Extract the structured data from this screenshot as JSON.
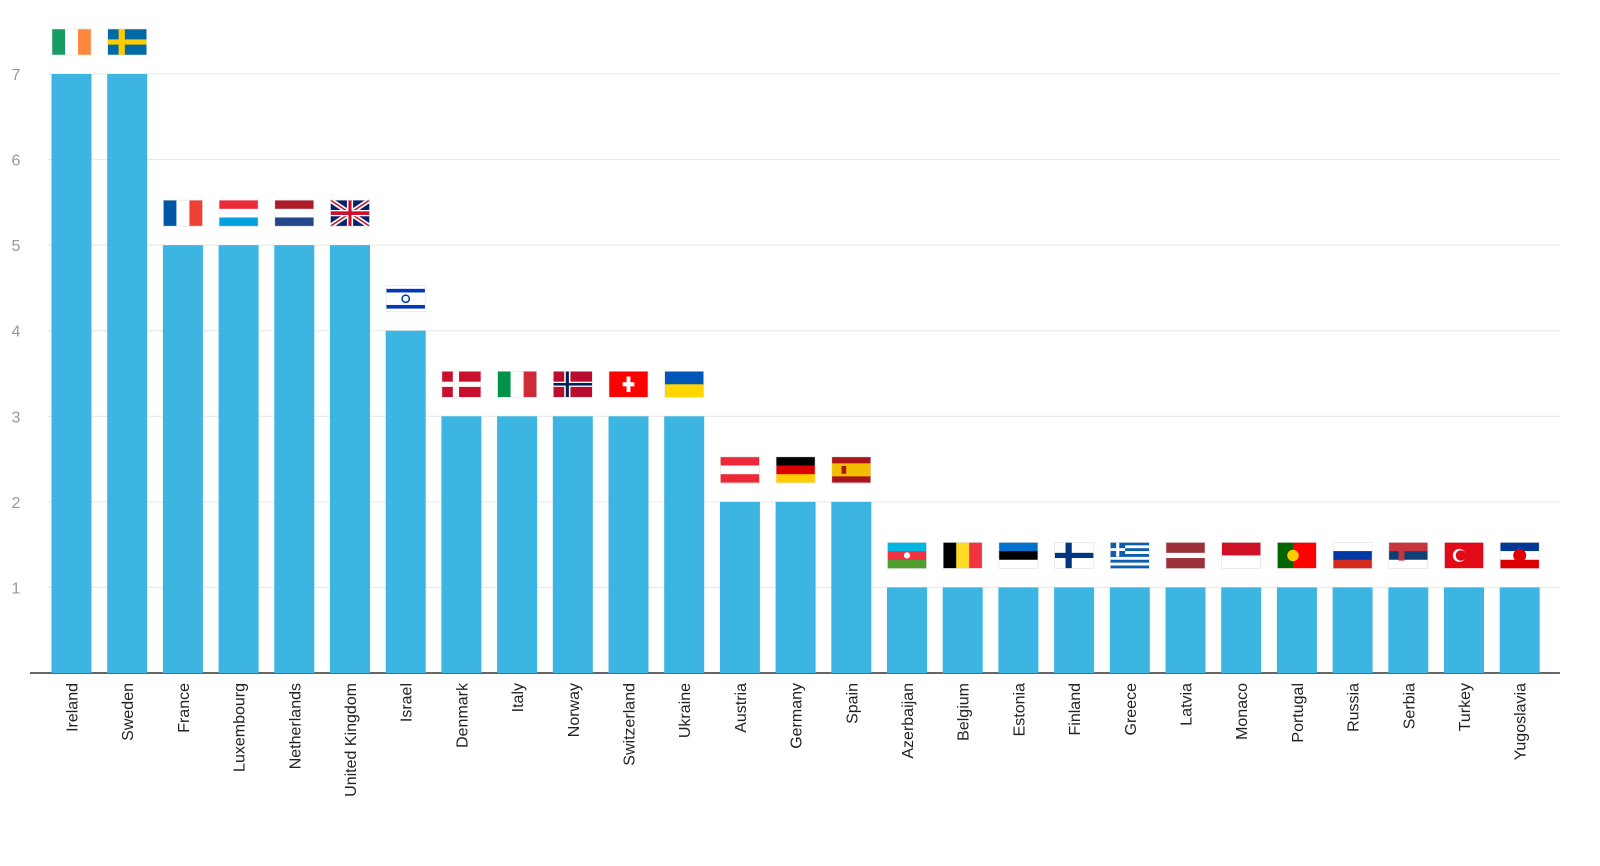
{
  "chart_data": {
    "type": "bar",
    "title": "",
    "xlabel": "",
    "ylabel": "",
    "ylim": [
      0,
      7
    ],
    "yticks": [
      1,
      2,
      3,
      4,
      5,
      6,
      7
    ],
    "grid": true,
    "bar_color": "#3db5e3",
    "categories": [
      "Ireland",
      "Sweden",
      "France",
      "Luxembourg",
      "Netherlands",
      "United Kingdom",
      "Israel",
      "Denmark",
      "Italy",
      "Norway",
      "Switzerland",
      "Ukraine",
      "Austria",
      "Germany",
      "Spain",
      "Azerbaijan",
      "Belgium",
      "Estonia",
      "Finland",
      "Greece",
      "Latvia",
      "Monaco",
      "Portugal",
      "Russia",
      "Serbia",
      "Turkey",
      "Yugoslavia"
    ],
    "values": [
      7,
      7,
      5,
      5,
      5,
      5,
      4,
      3,
      3,
      3,
      3,
      3,
      2,
      2,
      2,
      1,
      1,
      1,
      1,
      1,
      1,
      1,
      1,
      1,
      1,
      1,
      1
    ],
    "flags": [
      "ireland-flag-icon",
      "sweden-flag-icon",
      "france-flag-icon",
      "luxembourg-flag-icon",
      "netherlands-flag-icon",
      "united-kingdom-flag-icon",
      "israel-flag-icon",
      "denmark-flag-icon",
      "italy-flag-icon",
      "norway-flag-icon",
      "switzerland-flag-icon",
      "ukraine-flag-icon",
      "austria-flag-icon",
      "germany-flag-icon",
      "spain-flag-icon",
      "azerbaijan-flag-icon",
      "belgium-flag-icon",
      "estonia-flag-icon",
      "finland-flag-icon",
      "greece-flag-icon",
      "latvia-flag-icon",
      "monaco-flag-icon",
      "portugal-flag-icon",
      "russia-flag-icon",
      "serbia-flag-icon",
      "turkey-flag-icon",
      "yugoslavia-flag-icon"
    ]
  }
}
